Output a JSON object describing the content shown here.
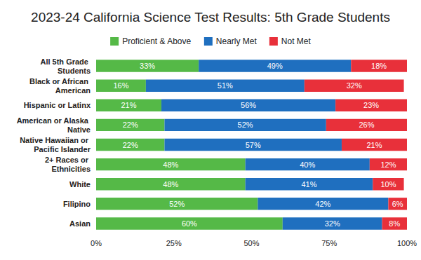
{
  "chart_data": {
    "type": "bar",
    "title": "2023-24 California Science Test Results: 5th Grade Students",
    "orientation": "horizontal",
    "stacked": true,
    "data_labels": true,
    "grid": false,
    "legend": "top",
    "categories": [
      "All 5th Grade Students",
      "Black or African American",
      "Hispanic or Latinx",
      "American or Alaska Native",
      "Native Hawaiian or Pacific Islander",
      "2+ Races or Ethnicities",
      "White",
      "Filipino",
      "Asian"
    ],
    "series": [
      {
        "name": "Proficient & Above",
        "color": "#55b947",
        "values": [
          33,
          16,
          21,
          22,
          22,
          48,
          48,
          52,
          60
        ],
        "value_labels": [
          "33%",
          "16%",
          "21%",
          "22%",
          "22%",
          "48%",
          "48%",
          "52%",
          "60%"
        ]
      },
      {
        "name": "Nearly Met",
        "color": "#1f6fbf",
        "values": [
          49,
          51,
          56,
          52,
          57,
          40,
          41,
          42,
          32
        ],
        "value_labels": [
          "49%",
          "51%",
          "56%",
          "52%",
          "57%",
          "40%",
          "41%",
          "42%",
          "32%"
        ]
      },
      {
        "name": "Not Met",
        "color": "#e8303a",
        "values": [
          18,
          32,
          23,
          26,
          21,
          12,
          10,
          6,
          8
        ],
        "value_labels": [
          "18%",
          "32%",
          "23%",
          "26%",
          "21%",
          "12%",
          "10%",
          "6%",
          "8%"
        ]
      }
    ],
    "xlim": [
      0,
      100
    ],
    "xticks": [
      {
        "value": 0,
        "label": "0%"
      },
      {
        "value": 25,
        "label": "25%"
      },
      {
        "value": 50,
        "label": "50%"
      },
      {
        "value": 75,
        "label": "75%"
      },
      {
        "value": 100,
        "label": "100%"
      }
    ]
  }
}
